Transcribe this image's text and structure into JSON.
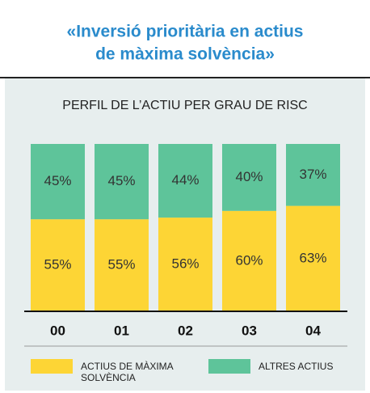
{
  "chart_data": {
    "type": "stacked_bar",
    "title": [
      "«Inversió prioritària en actius",
      "de màxima solvència»"
    ],
    "subtitle": "PERFIL DE L’ACTIU PER GRAU DE RISC",
    "categories": [
      "00",
      "01",
      "02",
      "03",
      "04"
    ],
    "series": [
      {
        "name": "ACTIUS DE MÀXIMA SOLVÈNCIA",
        "color": "#fdd535",
        "values": [
          55,
          55,
          56,
          60,
          63
        ],
        "value_labels": [
          "55%",
          "55%",
          "56%",
          "60%",
          "63%"
        ]
      },
      {
        "name": "ALTRES ACTIUS",
        "color": "#5ec49a",
        "values": [
          45,
          45,
          44,
          40,
          37
        ],
        "value_labels": [
          "45%",
          "45%",
          "44%",
          "40%",
          "37%"
        ]
      }
    ],
    "ylim": [
      0,
      100
    ]
  }
}
